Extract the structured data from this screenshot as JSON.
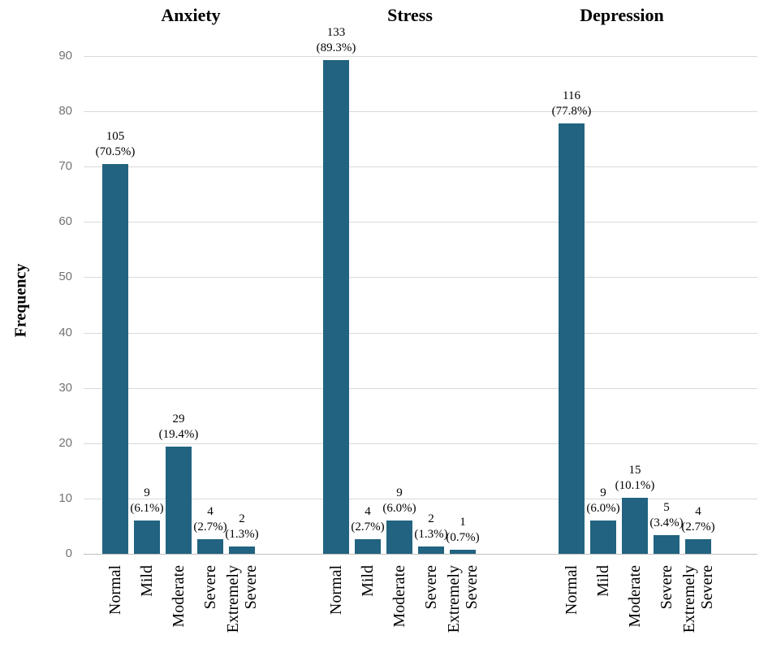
{
  "chart_data": {
    "type": "bar",
    "ylabel": "Frequency",
    "ylim": [
      0,
      90
    ],
    "yticks": [
      0,
      10,
      20,
      30,
      40,
      50,
      60,
      70,
      80,
      90
    ],
    "grid": true,
    "legend": "none",
    "bar_color": "#216380",
    "categories": [
      "Normal",
      "Mild",
      "Moderate",
      "Severe",
      "Extremely\nSevere"
    ],
    "groups": [
      {
        "title": "Anxiety",
        "counts": [
          105,
          9,
          29,
          4,
          2
        ],
        "percents": [
          70.5,
          6.1,
          19.4,
          2.7,
          1.3
        ]
      },
      {
        "title": "Stress",
        "counts": [
          133,
          4,
          9,
          2,
          1
        ],
        "percents": [
          89.3,
          2.7,
          6.0,
          1.3,
          0.7
        ]
      },
      {
        "title": "Depression",
        "counts": [
          116,
          9,
          15,
          5,
          4
        ],
        "percents": [
          77.8,
          6.0,
          10.1,
          3.4,
          2.7
        ]
      }
    ]
  }
}
